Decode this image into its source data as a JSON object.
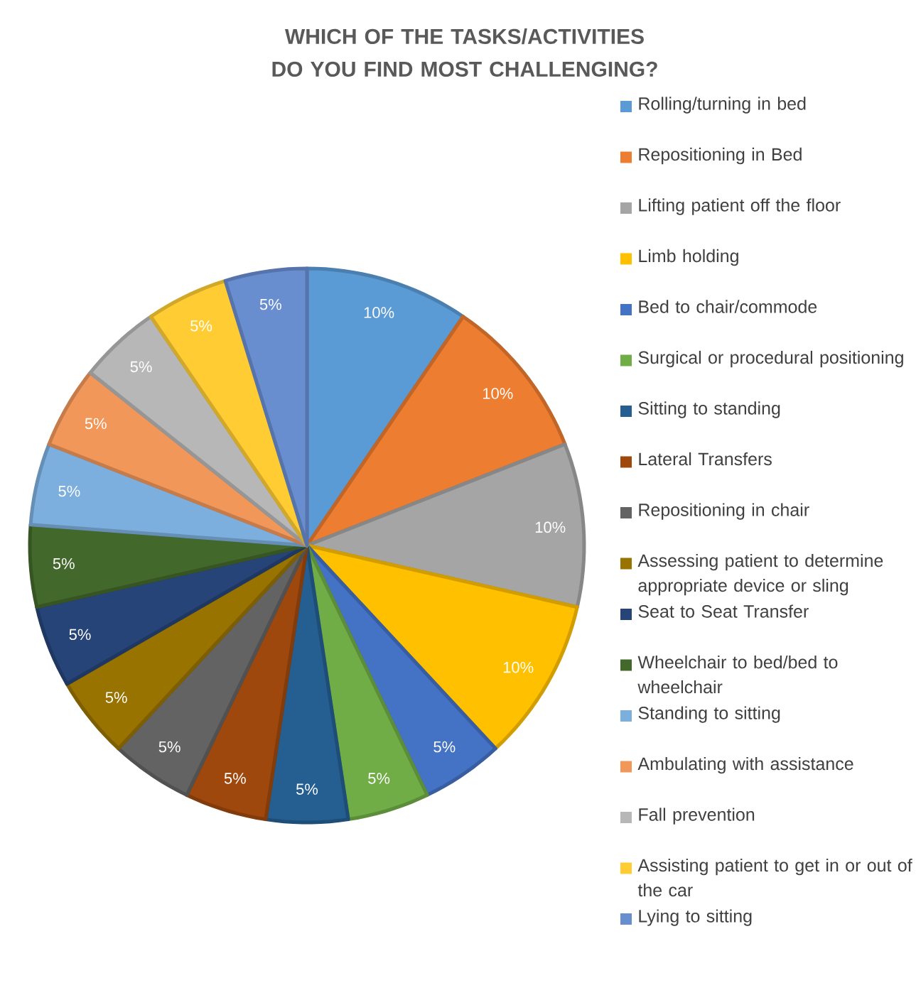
{
  "chart_data": {
    "type": "pie",
    "title": "WHICH OF THE TASKS/ACTIVITIES DO YOU FIND MOST CHALLENGING?",
    "categories": [
      "Rolling/turning in bed",
      "Repositioning in Bed",
      "Lifting patient off the floor",
      "Limb holding",
      "Bed to chair/commode",
      "Surgical or procedural positioning",
      "Sitting to standing",
      "Lateral Transfers",
      "Repositioning in chair",
      "Assessing patient to determine appropriate device or sling",
      "Seat to Seat Transfer",
      "Wheelchair to bed/bed to wheelchair",
      "Standing to sitting",
      "Ambulating with assistance",
      "Fall prevention",
      "Assisting patient to get in or out of the car",
      "Lying to sitting"
    ],
    "values": [
      10,
      10,
      10,
      10,
      5,
      5,
      5,
      5,
      5,
      5,
      5,
      5,
      5,
      5,
      5,
      5,
      5
    ],
    "value_labels": [
      "10%",
      "10%",
      "10%",
      "10%",
      "5%",
      "5%",
      "5%",
      "5%",
      "5%",
      "5%",
      "5%",
      "5%",
      "5%",
      "5%",
      "5%",
      "5%",
      "5%"
    ],
    "colors": [
      "#5b9bd5",
      "#ed7d31",
      "#a5a5a5",
      "#ffc000",
      "#4472c4",
      "#70ad47",
      "#255e91",
      "#9e480e",
      "#636363",
      "#997300",
      "#264478",
      "#43682b",
      "#7cafdd",
      "#f1975a",
      "#b7b7b7",
      "#ffcd33",
      "#698ed0"
    ],
    "legend": "right"
  }
}
